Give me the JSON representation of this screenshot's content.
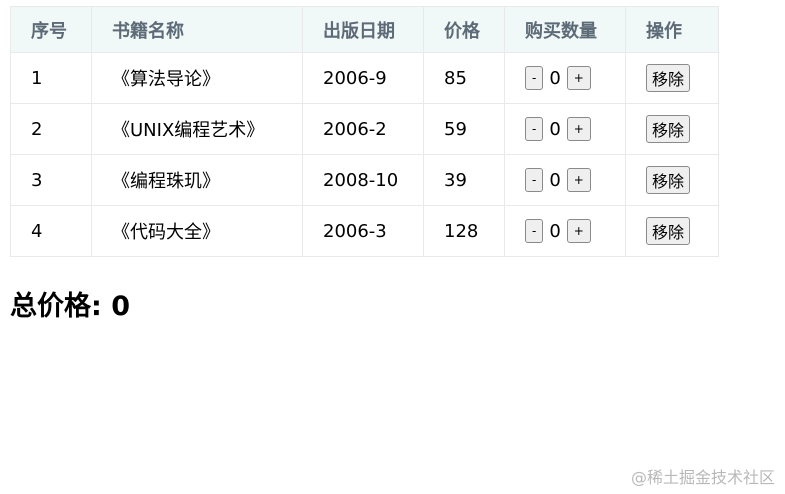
{
  "table": {
    "headers": [
      "序号",
      "书籍名称",
      "出版日期",
      "价格",
      "购买数量",
      "操作"
    ],
    "rows": [
      {
        "id": "1",
        "name": "《算法导论》",
        "date": "2006-9",
        "price": "85",
        "count": "0"
      },
      {
        "id": "2",
        "name": "《UNIX编程艺术》",
        "date": "2006-2",
        "price": "59",
        "count": "0"
      },
      {
        "id": "3",
        "name": "《编程珠玑》",
        "date": "2008-10",
        "price": "39",
        "count": "0"
      },
      {
        "id": "4",
        "name": "《代码大全》",
        "date": "2006-3",
        "price": "128",
        "count": "0"
      }
    ],
    "decrement_label": "-",
    "increment_label": "+",
    "remove_label": "移除"
  },
  "total": {
    "text": "总价格: 0"
  },
  "watermark": "@稀土掘金技术社区",
  "colors": {
    "header_bg": "#f1f8f8",
    "header_text": "#5c6b77"
  }
}
